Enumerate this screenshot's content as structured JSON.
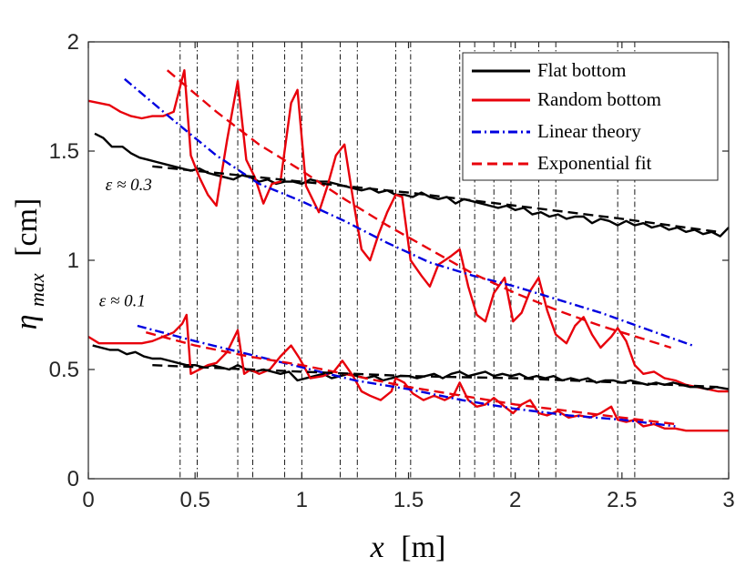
{
  "chart_data": {
    "type": "line",
    "xlabel_var": "x",
    "xlabel_unit": "[m]",
    "ylabel_var": "η",
    "ylabel_sub": "max",
    "ylabel_unit": "[cm]",
    "xlim": [
      0,
      3
    ],
    "ylim": [
      0,
      2
    ],
    "xticks": [
      0,
      0.5,
      1,
      1.5,
      2,
      2.5,
      3
    ],
    "xtick_labels": [
      "0",
      "0.5",
      "1",
      "1.5",
      "2",
      "2.5",
      "3"
    ],
    "yticks": [
      0,
      0.5,
      1,
      1.5,
      2
    ],
    "ytick_labels": [
      "0",
      "0.5",
      "1",
      "1.5",
      "2"
    ],
    "vlines": [
      0.43,
      0.51,
      0.7,
      0.77,
      0.92,
      1.0,
      1.18,
      1.26,
      1.44,
      1.51,
      1.74,
      1.81,
      1.9,
      1.98,
      2.11,
      2.19,
      2.48,
      2.56
    ],
    "annotations": [
      {
        "text": "ε ≈ 0.3",
        "x": 0.08,
        "y": 1.32
      },
      {
        "text": "ε ≈ 0.1",
        "x": 0.05,
        "y": 0.79
      }
    ],
    "legend": {
      "position": "top-right",
      "entries": [
        {
          "label": "Flat bottom",
          "color": "#000000",
          "style": "solid"
        },
        {
          "label": "Random bottom",
          "color": "#e8000b",
          "style": "solid"
        },
        {
          "label": "Linear theory",
          "color": "#0000e0",
          "style": "dashdot"
        },
        {
          "label": "Exponential fit",
          "color": "#e8000b",
          "style": "dashed"
        }
      ]
    },
    "series": [
      {
        "name": "Flat bottom (ε≈0.3)",
        "color": "#000000",
        "style": "solid",
        "x": [
          0.03,
          0.07,
          0.11,
          0.16,
          0.2,
          0.24,
          0.28,
          0.32,
          0.36,
          0.4,
          0.44,
          0.48,
          0.52,
          0.56,
          0.6,
          0.64,
          0.68,
          0.72,
          0.76,
          0.8,
          0.84,
          0.88,
          0.92,
          0.96,
          1.0,
          1.04,
          1.08,
          1.12,
          1.16,
          1.2,
          1.24,
          1.28,
          1.32,
          1.36,
          1.4,
          1.44,
          1.48,
          1.52,
          1.56,
          1.6,
          1.64,
          1.68,
          1.72,
          1.76,
          1.8,
          1.84,
          1.88,
          1.92,
          1.96,
          2.0,
          2.04,
          2.08,
          2.12,
          2.16,
          2.2,
          2.24,
          2.28,
          2.32,
          2.36,
          2.4,
          2.44,
          2.48,
          2.52,
          2.56,
          2.6,
          2.64,
          2.68,
          2.72,
          2.76,
          2.8,
          2.84,
          2.88,
          2.92,
          2.96,
          3.0
        ],
        "y": [
          1.58,
          1.56,
          1.52,
          1.52,
          1.49,
          1.47,
          1.46,
          1.45,
          1.44,
          1.43,
          1.42,
          1.41,
          1.42,
          1.4,
          1.39,
          1.38,
          1.37,
          1.39,
          1.38,
          1.36,
          1.37,
          1.35,
          1.36,
          1.36,
          1.35,
          1.37,
          1.36,
          1.36,
          1.35,
          1.34,
          1.33,
          1.32,
          1.33,
          1.31,
          1.32,
          1.3,
          1.3,
          1.29,
          1.31,
          1.29,
          1.28,
          1.29,
          1.26,
          1.28,
          1.27,
          1.26,
          1.25,
          1.24,
          1.25,
          1.23,
          1.24,
          1.21,
          1.22,
          1.2,
          1.21,
          1.19,
          1.2,
          1.2,
          1.17,
          1.19,
          1.18,
          1.16,
          1.18,
          1.16,
          1.17,
          1.15,
          1.16,
          1.14,
          1.15,
          1.13,
          1.14,
          1.12,
          1.13,
          1.11,
          1.15
        ]
      },
      {
        "name": "Random bottom (ε≈0.3)",
        "color": "#e8000b",
        "style": "solid",
        "x": [
          0.0,
          0.05,
          0.1,
          0.15,
          0.2,
          0.25,
          0.3,
          0.35,
          0.4,
          0.45,
          0.48,
          0.52,
          0.56,
          0.6,
          0.65,
          0.7,
          0.74,
          0.78,
          0.82,
          0.86,
          0.9,
          0.95,
          0.98,
          1.02,
          1.08,
          1.12,
          1.16,
          1.2,
          1.24,
          1.28,
          1.32,
          1.36,
          1.4,
          1.44,
          1.47,
          1.51,
          1.56,
          1.6,
          1.64,
          1.7,
          1.74,
          1.78,
          1.82,
          1.86,
          1.9,
          1.95,
          1.99,
          2.03,
          2.07,
          2.11,
          2.15,
          2.19,
          2.24,
          2.28,
          2.32,
          2.36,
          2.4,
          2.45,
          2.48,
          2.52,
          2.56,
          2.6,
          2.65,
          2.7,
          2.75,
          2.8,
          2.85,
          2.9,
          2.95,
          3.0
        ],
        "y": [
          1.73,
          1.72,
          1.71,
          1.68,
          1.66,
          1.65,
          1.66,
          1.66,
          1.68,
          1.87,
          1.48,
          1.38,
          1.3,
          1.25,
          1.55,
          1.82,
          1.46,
          1.38,
          1.26,
          1.35,
          1.36,
          1.72,
          1.78,
          1.34,
          1.22,
          1.34,
          1.48,
          1.53,
          1.28,
          1.05,
          1.0,
          1.12,
          1.22,
          1.3,
          1.29,
          1.0,
          0.93,
          0.88,
          0.98,
          1.02,
          1.05,
          0.88,
          0.75,
          0.72,
          0.85,
          0.92,
          0.72,
          0.76,
          0.86,
          0.92,
          0.77,
          0.66,
          0.62,
          0.7,
          0.74,
          0.66,
          0.6,
          0.65,
          0.69,
          0.63,
          0.52,
          0.48,
          0.49,
          0.46,
          0.45,
          0.43,
          0.42,
          0.41,
          0.4,
          0.4
        ]
      },
      {
        "name": "Flat bottom (ε≈0.1)",
        "color": "#000000",
        "style": "solid",
        "x": [
          0.02,
          0.06,
          0.1,
          0.14,
          0.18,
          0.22,
          0.26,
          0.3,
          0.34,
          0.38,
          0.42,
          0.46,
          0.5,
          0.54,
          0.58,
          0.62,
          0.66,
          0.7,
          0.74,
          0.78,
          0.82,
          0.86,
          0.9,
          0.94,
          0.98,
          1.02,
          1.06,
          1.1,
          1.14,
          1.18,
          1.22,
          1.26,
          1.3,
          1.34,
          1.38,
          1.42,
          1.46,
          1.5,
          1.54,
          1.58,
          1.62,
          1.66,
          1.7,
          1.74,
          1.78,
          1.82,
          1.86,
          1.9,
          1.94,
          1.98,
          2.02,
          2.06,
          2.1,
          2.14,
          2.18,
          2.22,
          2.26,
          2.3,
          2.34,
          2.38,
          2.42,
          2.46,
          2.5,
          2.54,
          2.58,
          2.62,
          2.66,
          2.7,
          2.74,
          2.78,
          2.82,
          2.86,
          2.9,
          2.94,
          3.0
        ],
        "y": [
          0.61,
          0.6,
          0.59,
          0.59,
          0.57,
          0.58,
          0.56,
          0.55,
          0.55,
          0.54,
          0.53,
          0.52,
          0.52,
          0.51,
          0.52,
          0.51,
          0.5,
          0.52,
          0.5,
          0.49,
          0.5,
          0.49,
          0.48,
          0.49,
          0.45,
          0.46,
          0.47,
          0.48,
          0.46,
          0.47,
          0.48,
          0.47,
          0.46,
          0.47,
          0.45,
          0.46,
          0.47,
          0.47,
          0.46,
          0.47,
          0.48,
          0.46,
          0.48,
          0.49,
          0.47,
          0.48,
          0.49,
          0.47,
          0.48,
          0.47,
          0.48,
          0.46,
          0.47,
          0.46,
          0.47,
          0.45,
          0.46,
          0.45,
          0.46,
          0.44,
          0.45,
          0.45,
          0.44,
          0.45,
          0.44,
          0.43,
          0.44,
          0.43,
          0.44,
          0.43,
          0.42,
          0.42,
          0.41,
          0.42,
          0.41
        ]
      },
      {
        "name": "Random bottom (ε≈0.1)",
        "color": "#e8000b",
        "style": "solid",
        "x": [
          0.0,
          0.05,
          0.1,
          0.15,
          0.2,
          0.25,
          0.3,
          0.35,
          0.4,
          0.44,
          0.46,
          0.48,
          0.52,
          0.56,
          0.6,
          0.65,
          0.7,
          0.73,
          0.76,
          0.8,
          0.85,
          0.9,
          0.95,
          0.99,
          1.04,
          1.1,
          1.15,
          1.19,
          1.24,
          1.28,
          1.32,
          1.37,
          1.42,
          1.44,
          1.48,
          1.52,
          1.57,
          1.62,
          1.67,
          1.71,
          1.74,
          1.78,
          1.82,
          1.86,
          1.9,
          1.95,
          1.99,
          2.03,
          2.07,
          2.11,
          2.15,
          2.2,
          2.25,
          2.3,
          2.35,
          2.4,
          2.45,
          2.48,
          2.52,
          2.56,
          2.6,
          2.65,
          2.7,
          2.75,
          2.8,
          2.85,
          2.9,
          2.95,
          3.0
        ],
        "y": [
          0.65,
          0.62,
          0.62,
          0.62,
          0.62,
          0.62,
          0.63,
          0.65,
          0.67,
          0.71,
          0.75,
          0.48,
          0.5,
          0.52,
          0.53,
          0.58,
          0.68,
          0.48,
          0.5,
          0.48,
          0.5,
          0.56,
          0.61,
          0.55,
          0.46,
          0.47,
          0.49,
          0.54,
          0.47,
          0.4,
          0.38,
          0.36,
          0.4,
          0.46,
          0.44,
          0.39,
          0.36,
          0.38,
          0.36,
          0.38,
          0.44,
          0.36,
          0.33,
          0.34,
          0.37,
          0.33,
          0.3,
          0.34,
          0.36,
          0.3,
          0.29,
          0.31,
          0.28,
          0.29,
          0.28,
          0.3,
          0.33,
          0.27,
          0.26,
          0.27,
          0.24,
          0.25,
          0.23,
          0.23,
          0.22,
          0.22,
          0.22,
          0.22,
          0.22
        ]
      },
      {
        "name": "Linear theory (ε≈0.3)",
        "color": "#0000e0",
        "style": "dashdot",
        "x": [
          0.17,
          0.4,
          0.6,
          0.8,
          1.0,
          1.2,
          1.4,
          1.6,
          1.8,
          2.0,
          2.2,
          2.4,
          2.6,
          2.83
        ],
        "y": [
          1.83,
          1.64,
          1.48,
          1.35,
          1.27,
          1.18,
          1.08,
          0.99,
          0.93,
          0.88,
          0.82,
          0.76,
          0.69,
          0.61
        ]
      },
      {
        "name": "Exponential fit (ε≈0.3)",
        "color": "#e8000b",
        "style": "dashed",
        "x": [
          0.37,
          0.6,
          0.8,
          1.0,
          1.2,
          1.4,
          1.6,
          1.8,
          2.0,
          2.2,
          2.4,
          2.6,
          2.73
        ],
        "y": [
          1.87,
          1.68,
          1.53,
          1.41,
          1.28,
          1.16,
          1.05,
          0.94,
          0.85,
          0.77,
          0.7,
          0.64,
          0.6
        ]
      },
      {
        "name": "Linear theory (ε≈0.1)",
        "color": "#0000e0",
        "style": "dashdot",
        "x": [
          0.23,
          0.5,
          0.75,
          1.0,
          1.25,
          1.5,
          1.75,
          2.0,
          2.25,
          2.5,
          2.75
        ],
        "y": [
          0.7,
          0.63,
          0.57,
          0.51,
          0.45,
          0.41,
          0.36,
          0.32,
          0.29,
          0.27,
          0.24
        ]
      },
      {
        "name": "Exponential fit (ε≈0.1)",
        "color": "#e8000b",
        "style": "dashed",
        "x": [
          0.27,
          0.5,
          0.75,
          1.0,
          1.25,
          1.5,
          1.75,
          2.0,
          2.25,
          2.5,
          2.75
        ],
        "y": [
          0.67,
          0.61,
          0.56,
          0.52,
          0.47,
          0.42,
          0.38,
          0.34,
          0.31,
          0.28,
          0.25
        ]
      },
      {
        "name": "Flat fit (ε≈0.3)",
        "color": "#000000",
        "style": "dashed",
        "x": [
          0.3,
          1.0,
          1.5,
          2.0,
          2.5,
          2.95
        ],
        "y": [
          1.43,
          1.36,
          1.31,
          1.25,
          1.19,
          1.13
        ]
      },
      {
        "name": "Flat fit (ε≈0.1)",
        "color": "#000000",
        "style": "dashed",
        "x": [
          0.3,
          1.0,
          1.5,
          2.0,
          2.5,
          2.95
        ],
        "y": [
          0.52,
          0.49,
          0.47,
          0.46,
          0.44,
          0.42
        ]
      }
    ]
  }
}
